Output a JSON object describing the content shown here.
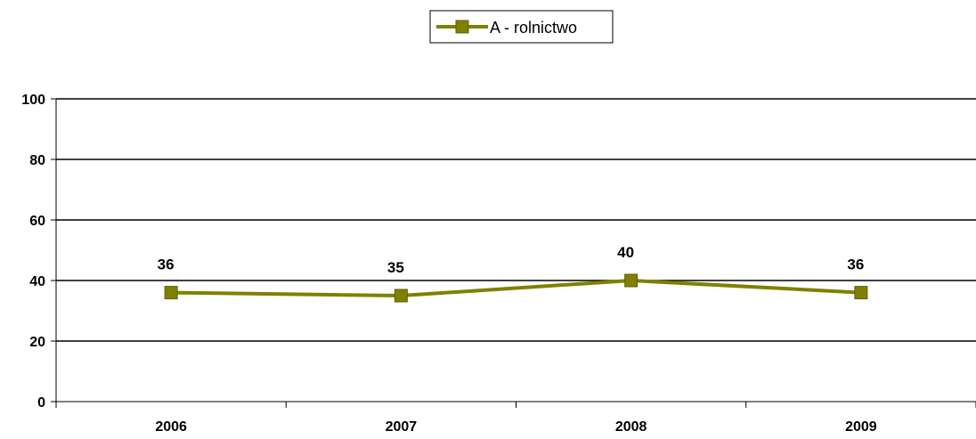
{
  "chart_data": {
    "type": "line",
    "categories": [
      "2006",
      "2007",
      "2008",
      "2009"
    ],
    "series": [
      {
        "name": "A - rolnictwo",
        "values": [
          36,
          35,
          40,
          36
        ],
        "color": "#808000"
      }
    ],
    "ylim": [
      0,
      100
    ],
    "yticks": [
      "0",
      "20",
      "40",
      "60",
      "80",
      "100"
    ],
    "data_labels": [
      "36",
      "35",
      "40",
      "36"
    ],
    "grid": true,
    "legend_position": "top-center",
    "title": "",
    "xlabel": "",
    "ylabel": ""
  }
}
